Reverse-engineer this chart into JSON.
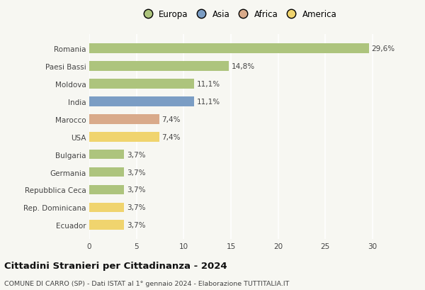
{
  "categories": [
    "Romania",
    "Paesi Bassi",
    "Moldova",
    "India",
    "Marocco",
    "USA",
    "Bulgaria",
    "Germania",
    "Repubblica Ceca",
    "Rep. Dominicana",
    "Ecuador"
  ],
  "values": [
    29.6,
    14.8,
    11.1,
    11.1,
    7.4,
    7.4,
    3.7,
    3.7,
    3.7,
    3.7,
    3.7
  ],
  "labels": [
    "29,6%",
    "14,8%",
    "11,1%",
    "11,1%",
    "7,4%",
    "7,4%",
    "3,7%",
    "3,7%",
    "3,7%",
    "3,7%",
    "3,7%"
  ],
  "colors": [
    "#adc47d",
    "#adc47d",
    "#adc47d",
    "#7b9dc4",
    "#d9aa8a",
    "#f0d46e",
    "#adc47d",
    "#adc47d",
    "#adc47d",
    "#f0d46e",
    "#f0d46e"
  ],
  "legend": {
    "labels": [
      "Europa",
      "Asia",
      "Africa",
      "America"
    ],
    "colors": [
      "#adc47d",
      "#7b9dc4",
      "#d9aa8a",
      "#f0d46e"
    ]
  },
  "xlim": [
    0,
    31.5
  ],
  "xticks": [
    0,
    5,
    10,
    15,
    20,
    25,
    30
  ],
  "title": "Cittadini Stranieri per Cittadinanza - 2024",
  "subtitle": "COMUNE DI CARRO (SP) - Dati ISTAT al 1° gennaio 2024 - Elaborazione TUTTITALIA.IT",
  "background_color": "#f7f7f2",
  "grid_color": "#ffffff",
  "bar_height": 0.55
}
